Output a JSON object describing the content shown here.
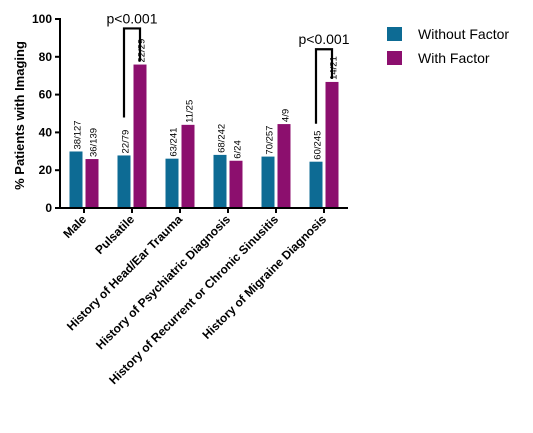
{
  "chart_data": {
    "type": "bar",
    "title": "",
    "xlabel": "",
    "ylabel": "% Patients with Imaging",
    "ylim": [
      0,
      100
    ],
    "yticks": [
      0,
      20,
      40,
      60,
      80,
      100
    ],
    "grid": false,
    "legend_position": "top-right",
    "categories": [
      "Male",
      "Pulsatile",
      "History of Head/Ear Trauma",
      "History of Psychiatric Diagnosis",
      "History of Recurrent or Chronic Sinusitis",
      "History of Migraine Diagnosis"
    ],
    "series": [
      {
        "name": "Without Factor",
        "color": "#0d6b94",
        "values": [
          29.9,
          27.8,
          26.1,
          28.1,
          27.2,
          24.5
        ],
        "labels": [
          "38/127",
          "22/79",
          "63/241",
          "68/242",
          "70/257",
          "60/245"
        ]
      },
      {
        "name": "With Factor",
        "color": "#8c0f6e",
        "values": [
          25.9,
          75.9,
          44.0,
          25.0,
          44.4,
          66.7
        ],
        "labels": [
          "36/139",
          "22/29",
          "11/25",
          "6/24",
          "4/9",
          "14/21"
        ]
      }
    ],
    "annotations": [
      {
        "text": "p<0.001",
        "category_index": 1,
        "y": 95
      },
      {
        "text": "p<0.001",
        "category_index": 5,
        "y": 84
      }
    ]
  }
}
